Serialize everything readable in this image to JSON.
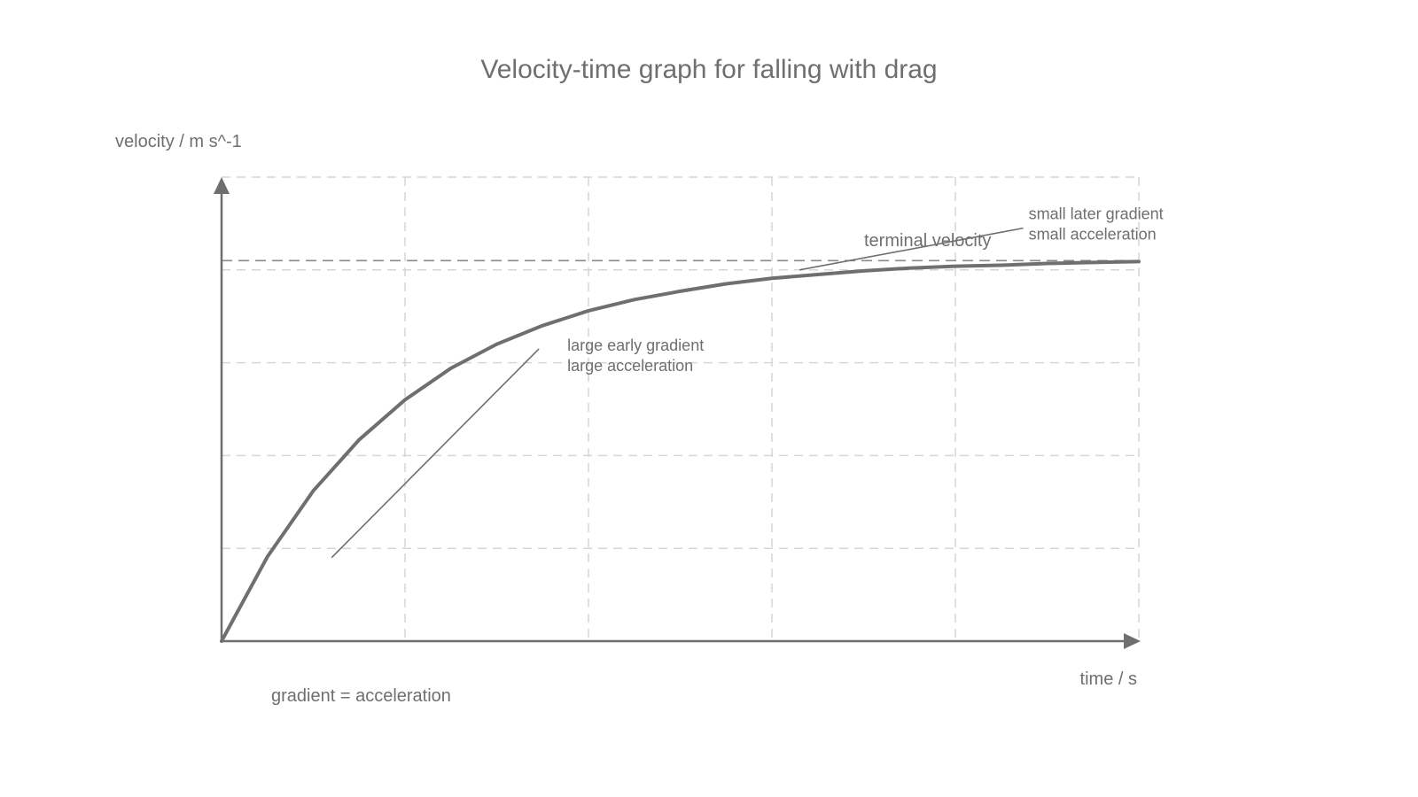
{
  "chart_data": {
    "type": "line",
    "title": "Velocity-time graph for falling with drag",
    "xlabel": "time / s",
    "ylabel": "velocity / m s^-1",
    "xlim": [
      0,
      5
    ],
    "ylim": [
      0,
      5
    ],
    "grid": true,
    "terminal_velocity": 4.1,
    "series": [
      {
        "x": [
          0,
          0.25,
          0.5,
          0.75,
          1,
          1.25,
          1.5,
          1.75,
          2,
          2.25,
          2.5,
          2.75,
          3,
          3.25,
          3.5,
          3.75,
          4,
          4.25,
          4.5,
          4.75,
          5
        ],
        "y": [
          0,
          0.91,
          1.62,
          2.17,
          2.6,
          2.94,
          3.2,
          3.4,
          3.56,
          3.68,
          3.77,
          3.85,
          3.91,
          3.95,
          3.99,
          4.02,
          4.04,
          4.05,
          4.07,
          4.08,
          4.09
        ]
      }
    ],
    "tangents": [
      {
        "name": "early",
        "x": [
          0.6,
          1.73
        ],
        "y": [
          0.9,
          3.15
        ],
        "label_lines": [
          "large early gradient",
          "large acceleration"
        ]
      },
      {
        "name": "late",
        "x": [
          3.15,
          4.37
        ],
        "y": [
          4.0,
          4.45
        ],
        "label_lines": [
          "small later gradient",
          "small acceleration"
        ]
      }
    ],
    "annotations": {
      "terminal_velocity": "terminal velocity",
      "footnote": "gradient = acceleration"
    }
  }
}
